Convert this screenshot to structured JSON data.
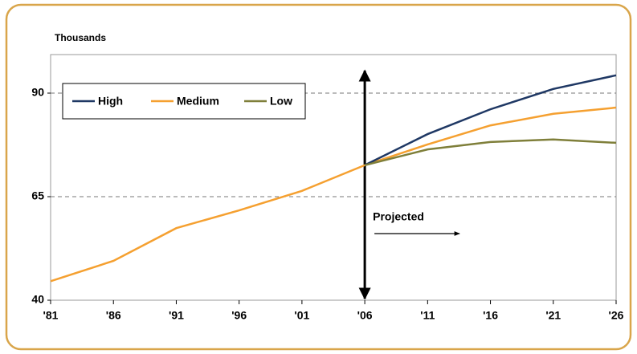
{
  "chart_data": {
    "type": "line",
    "title": "Thousands",
    "annotation": "Projected",
    "categories": [
      "'81",
      "'86",
      "'91",
      "'96",
      "'01",
      "'06",
      "'11",
      "'16",
      "'21",
      "'26"
    ],
    "series": [
      {
        "name": "High",
        "color": "#1f3864",
        "values": [
          null,
          null,
          null,
          null,
          null,
          72.6,
          80.1,
          86.1,
          91.0,
          94.3
        ]
      },
      {
        "name": "Medium",
        "color": "#f5a030",
        "values": [
          44.6,
          49.5,
          57.4,
          61.7,
          66.4,
          72.6,
          77.6,
          82.2,
          85.0,
          86.5
        ]
      },
      {
        "name": "Low",
        "color": "#7f7f3a",
        "values": [
          null,
          null,
          null,
          null,
          null,
          72.6,
          76.4,
          78.2,
          78.8,
          78.0
        ]
      }
    ],
    "ylim": [
      40,
      99.3
    ],
    "yticks": [
      40,
      65,
      90
    ],
    "grid": true,
    "legend": "upper left"
  }
}
